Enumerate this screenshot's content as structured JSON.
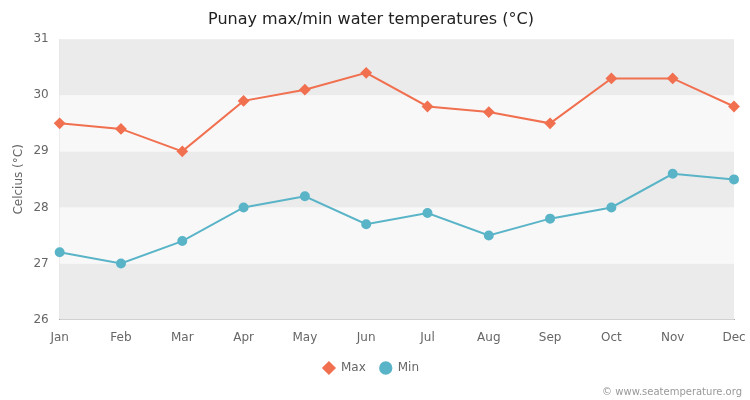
{
  "chart_data": {
    "type": "line",
    "title": "Punay max/min water temperatures (°C)",
    "ylabel": "Celcius (°C)",
    "categories": [
      "Jan",
      "Feb",
      "Mar",
      "Apr",
      "May",
      "Jun",
      "Jul",
      "Aug",
      "Sep",
      "Oct",
      "Nov",
      "Dec"
    ],
    "series": [
      {
        "name": "Max",
        "color": "#f07050",
        "marker": "diamond",
        "values": [
          29.5,
          29.4,
          29.0,
          29.9,
          30.1,
          30.4,
          29.8,
          29.7,
          29.5,
          30.3,
          30.3,
          29.8
        ]
      },
      {
        "name": "Min",
        "color": "#5ab4c8",
        "marker": "circle",
        "values": [
          27.2,
          27.0,
          27.4,
          28.0,
          28.2,
          27.7,
          27.9,
          27.5,
          27.8,
          28.0,
          28.6,
          28.5
        ]
      }
    ],
    "ylim": [
      26,
      31
    ],
    "yticks": [
      26,
      27,
      28,
      29,
      30,
      31
    ],
    "grid": true,
    "legend": "bottom",
    "annotation": "© www.seatemperature.org"
  }
}
